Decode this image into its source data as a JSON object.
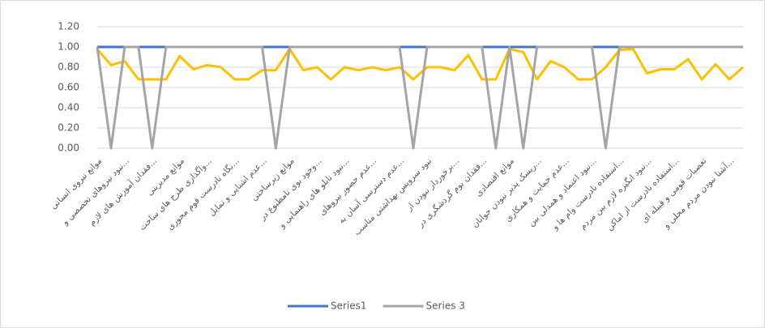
{
  "chart_data": {
    "type": "line",
    "categories": [
      "موانع نیروی انسانی",
      null,
      "نبود نیروهای تخصصی و...",
      null,
      "فقدان آموزش های لازم...",
      null,
      "موانع مدیریتی",
      null,
      "واگذاری طرح های ساخت...",
      null,
      "نگاه نادرست قوم محوری...",
      null,
      "عدم اشنایی و تمایل...",
      null,
      "موانع زیرساختی",
      null,
      "وجود بوی نامطبوع در...",
      null,
      "نبود تابلو های راهنمایی و...",
      null,
      "عدم حضور نیروهای...",
      null,
      "عدم دسترسی آسان به...",
      null,
      "نبود سرویس بهداشتی مناسب",
      null,
      "برخوردار نبودن از...",
      null,
      "فقدان بوم گردشگری در...",
      null,
      "موانع اقتصادی",
      null,
      "ریسک پذیر نبودن جوانان...",
      null,
      "عدم حمایت و همکاری...",
      null,
      "نبود اعتماد و همدلی بین...",
      null,
      "استفاده نادرست وام ها و...",
      null,
      "نبود انگیزه لازم بین مردم...",
      null,
      "استفاده نادرست از اماکن...",
      null,
      "تعصبات قومی و قبیله ای",
      null,
      "آشنا نبودن مردم محلی و...",
      null
    ],
    "series": [
      {
        "name": "Series1",
        "color": "#4472c4",
        "values": [
          1,
          1,
          1,
          1,
          1,
          1,
          1,
          1,
          1,
          1,
          1,
          1,
          1,
          1,
          1,
          1,
          1,
          1,
          1,
          1,
          1,
          1,
          1,
          1,
          1,
          1,
          1,
          1,
          1,
          1,
          1,
          1,
          1,
          1,
          1,
          1,
          1,
          1,
          1,
          1,
          1,
          1,
          1,
          1,
          1,
          1,
          1,
          1
        ]
      },
      {
        "color": "#ffc000",
        "values": [
          0.98,
          0.82,
          0.86,
          0.68,
          0.68,
          0.68,
          0.91,
          0.78,
          0.82,
          0.8,
          0.68,
          0.68,
          0.77,
          0.77,
          0.98,
          0.77,
          0.8,
          0.68,
          0.8,
          0.77,
          0.8,
          0.77,
          0.8,
          0.68,
          0.8,
          0.8,
          0.77,
          0.92,
          0.68,
          0.68,
          0.98,
          0.95,
          0.68,
          0.86,
          0.8,
          0.68,
          0.68,
          0.8,
          0.97,
          0.98,
          0.74,
          0.78,
          0.78,
          0.88,
          0.68,
          0.83,
          0.68,
          0.8
        ]
      },
      {
        "name": "Series 3",
        "color": "#a5a5a5",
        "values": [
          1,
          0,
          1,
          1,
          0,
          1,
          1,
          1,
          1,
          1,
          1,
          1,
          1,
          0,
          1,
          1,
          1,
          1,
          1,
          1,
          1,
          1,
          1,
          0,
          1,
          1,
          1,
          1,
          1,
          0,
          1,
          0,
          1,
          1,
          1,
          1,
          1,
          0,
          1,
          1,
          1,
          1,
          1,
          1,
          1,
          1,
          1,
          1
        ]
      }
    ],
    "ylim": [
      0,
      1.2
    ],
    "yticks": [
      {
        "value": 0,
        "label": "0.00"
      },
      {
        "value": 0.2,
        "label": "0.20"
      },
      {
        "value": 0.4,
        "label": "0.40"
      },
      {
        "value": 0.6,
        "label": "0.60"
      },
      {
        "value": 0.8,
        "label": "0.80"
      },
      {
        "value": 1,
        "label": "1.00"
      },
      {
        "value": 1.2,
        "label": "1.20"
      }
    ],
    "grid": true,
    "legend": "bottom"
  }
}
